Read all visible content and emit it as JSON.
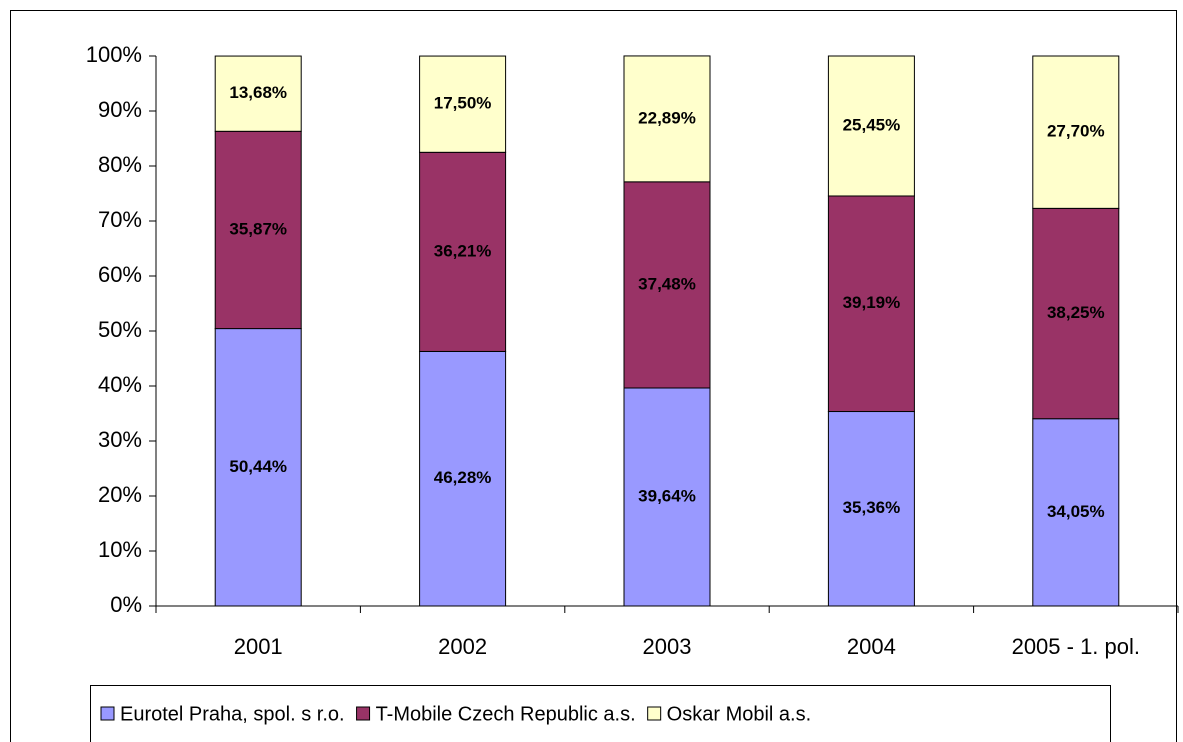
{
  "chart_data": {
    "type": "stacked-bar",
    "categories": [
      "2001",
      "2002",
      "2003",
      "2004",
      "2005 - 1. pol."
    ],
    "series": [
      {
        "name": "Eurotel Praha, spol. s r.o.",
        "color": "#9999ff",
        "values": [
          50.44,
          46.28,
          39.64,
          35.36,
          34.05
        ],
        "value_labels": [
          "50,44%",
          "46,28%",
          "39,64%",
          "35,36%",
          "34,05%"
        ]
      },
      {
        "name": "T-Mobile Czech Republic a.s.",
        "color": "#993366",
        "values": [
          35.87,
          36.21,
          37.48,
          39.19,
          38.25
        ],
        "value_labels": [
          "35,87%",
          "36,21%",
          "37,48%",
          "39,19%",
          "38,25%"
        ]
      },
      {
        "name": "Oskar Mobil a.s.",
        "color": "#ffffcc",
        "values": [
          13.68,
          17.5,
          22.89,
          25.45,
          27.7
        ],
        "value_labels": [
          "13,68%",
          "17,50%",
          "22,89%",
          "25,45%",
          "27,70%"
        ]
      }
    ],
    "ylim": [
      0,
      100
    ],
    "yticks": [
      {
        "value": 0,
        "label": "0%"
      },
      {
        "value": 10,
        "label": "10%"
      },
      {
        "value": 20,
        "label": "20%"
      },
      {
        "value": 30,
        "label": "30%"
      },
      {
        "value": 40,
        "label": "40%"
      },
      {
        "value": 50,
        "label": "50%"
      },
      {
        "value": 60,
        "label": "60%"
      },
      {
        "value": 70,
        "label": "70%"
      },
      {
        "value": 80,
        "label": "80%"
      },
      {
        "value": 90,
        "label": "90%"
      },
      {
        "value": 100,
        "label": "100%"
      }
    ],
    "grid": false,
    "legend": "bottom"
  }
}
